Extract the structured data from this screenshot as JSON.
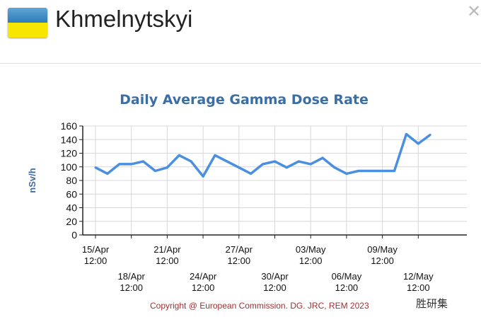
{
  "header": {
    "title": "Khmelnytskyi",
    "close_icon": "close-icon",
    "flag": "ukraine-flag"
  },
  "chart_data": {
    "type": "line",
    "title": "Daily Average Gamma Dose Rate",
    "ylabel": "nSv/h",
    "xlabel": "",
    "ylim": [
      0,
      160
    ],
    "yticks": [
      0,
      20,
      40,
      60,
      80,
      100,
      120,
      140,
      160
    ],
    "x_start": "15/Apr",
    "xticks": [
      {
        "day": 0,
        "label": "15/Apr",
        "time": "12:00"
      },
      {
        "day": 3,
        "label": "18/Apr",
        "time": "12:00"
      },
      {
        "day": 6,
        "label": "21/Apr",
        "time": "12:00"
      },
      {
        "day": 9,
        "label": "24/Apr",
        "time": "12:00"
      },
      {
        "day": 12,
        "label": "27/Apr",
        "time": "12:00"
      },
      {
        "day": 15,
        "label": "30/Apr",
        "time": "12:00"
      },
      {
        "day": 18,
        "label": "03/May",
        "time": "12:00"
      },
      {
        "day": 21,
        "label": "06/May",
        "time": "12:00"
      },
      {
        "day": 24,
        "label": "09/May",
        "time": "12:00"
      },
      {
        "day": 27,
        "label": "12/May",
        "time": "12:00"
      }
    ],
    "grid": true,
    "series": [
      {
        "name": "Gamma dose rate",
        "color": "#4a8fe0",
        "values": [
          99,
          90,
          104,
          104,
          108,
          94,
          99,
          117,
          108,
          86,
          117,
          108,
          99,
          90,
          104,
          108,
          99,
          108,
          104,
          113,
          99,
          90,
          94,
          94,
          94,
          94,
          148,
          134,
          147
        ]
      }
    ]
  },
  "footer": {
    "copyright": "Copyright @ European Commission. DG. JRC, REM 2023",
    "watermark": "胜研集"
  }
}
